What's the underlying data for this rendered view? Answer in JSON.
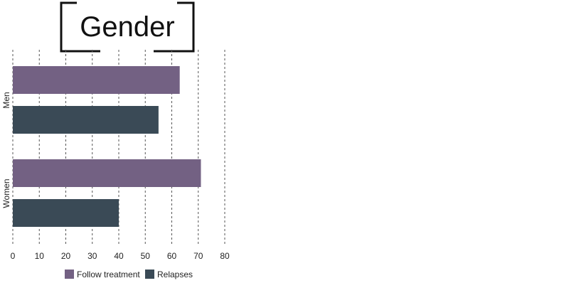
{
  "chart_data": {
    "type": "bar",
    "orientation": "horizontal",
    "title": "Gender",
    "categories": [
      "Men",
      "Women"
    ],
    "series": [
      {
        "name": "Follow treatment",
        "values": [
          63,
          71
        ],
        "color": "#736183"
      },
      {
        "name": "Relapses",
        "values": [
          55,
          40
        ],
        "color": "#3a4a56"
      }
    ],
    "xlim": [
      0,
      80
    ],
    "xticks": [
      0,
      10,
      20,
      30,
      40,
      50,
      60,
      70,
      80
    ],
    "grid": true,
    "grid_style": "dashed",
    "legend_position": "bottom"
  }
}
